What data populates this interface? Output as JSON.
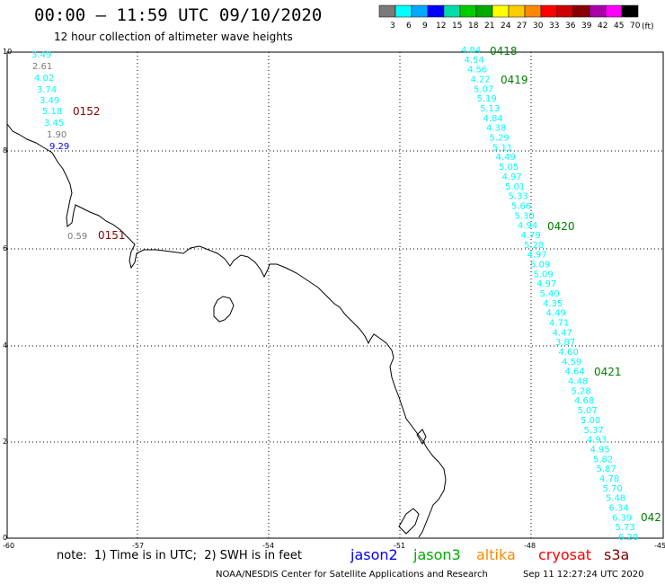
{
  "header": {
    "title": "00:00 – 11:59 UTC 09/10/2020",
    "subtitle": "12 hour collection of altimeter wave heights"
  },
  "legend": {
    "unit": "(ft)",
    "labels": [
      "3",
      "6",
      "9",
      "12",
      "15",
      "18",
      "21",
      "24",
      "27",
      "30",
      "33",
      "36",
      "39",
      "42",
      "45",
      "70"
    ],
    "colors": [
      "#7a7a7a",
      "#00ffff",
      "#00aaff",
      "#0000ff",
      "#00ddaa",
      "#00cc00",
      "#00aa00",
      "#ffff00",
      "#ffcc00",
      "#ff8800",
      "#ff0000",
      "#cc0000",
      "#880000",
      "#aa00aa",
      "#ff00ff",
      "#000000"
    ]
  },
  "axes": {
    "x_ticks": [
      "-60",
      "-57",
      "-54",
      "-51",
      "-48",
      "-45"
    ],
    "y_ticks": [
      "0",
      "2",
      "4",
      "6",
      "8",
      "10"
    ]
  },
  "tracks": [
    {
      "pass_label": "0152",
      "pass_label_color": "#880000",
      "points": [
        {
          "v": "3.49",
          "c": "#00ffff"
        },
        {
          "v": "2.61",
          "c": "#7a7a7a"
        },
        {
          "v": "4.02",
          "c": "#00ffff"
        },
        {
          "v": "3.74",
          "c": "#00ffff"
        },
        {
          "v": "3.49",
          "c": "#00ffff"
        },
        {
          "v": "5.18",
          "c": "#00ffff"
        },
        {
          "v": "3.45",
          "c": "#00ffff"
        },
        {
          "v": "1.90",
          "c": "#7a7a7a"
        },
        {
          "v": "9.29",
          "c": "#0000ff"
        }
      ]
    },
    {
      "pass_label": "0151",
      "pass_label_color": "#880000",
      "points": [
        {
          "v": "0.59",
          "c": "#7a7a7a"
        }
      ]
    },
    {
      "pass_labels": [
        "0418",
        "0419",
        "0420",
        "0421",
        "042"
      ],
      "pass_label_color": "#008000",
      "points": [
        "4.84",
        "4.54",
        "4.56",
        "4.22",
        "5.07",
        "5.19",
        "5.13",
        "4.84",
        "4.38",
        "5.29",
        "5.11",
        "4.49",
        "5.05",
        "4.97",
        "5.01",
        "5.33",
        "5.66",
        "5.30",
        "4.94",
        "4.79",
        "5.28",
        "4.97",
        "5.09",
        "5.09",
        "4.97",
        "5.40",
        "4.35",
        "4.49",
        "4.71",
        "4.47",
        "3.87",
        "4.60",
        "4.59",
        "4.64",
        "4.48",
        "5.28",
        "4.68",
        "5.07",
        "5.00",
        "5.37",
        "4.93",
        "4.95",
        "5.82",
        "5.87",
        "4.78",
        "5.70",
        "5.48",
        "6.34",
        "6.39",
        "5.73",
        "6.20"
      ],
      "color": "#00ffff"
    }
  ],
  "footer": {
    "note": "note:  1) Time is in UTC;  2) SWH is in feet",
    "missions": [
      {
        "name": "jason2",
        "color": "#0000ff"
      },
      {
        "name": "jason3",
        "color": "#00aa00"
      },
      {
        "name": "altika",
        "color": "#ff8800"
      },
      {
        "name": "cryosat",
        "color": "#ff0000"
      },
      {
        "name": "s3a",
        "color": "#880000"
      }
    ],
    "credit": "NOAA/NESDIS Center for Satellite Applications and Research",
    "timestamp": "Sep 11 12:27:24 UTC 2020"
  }
}
